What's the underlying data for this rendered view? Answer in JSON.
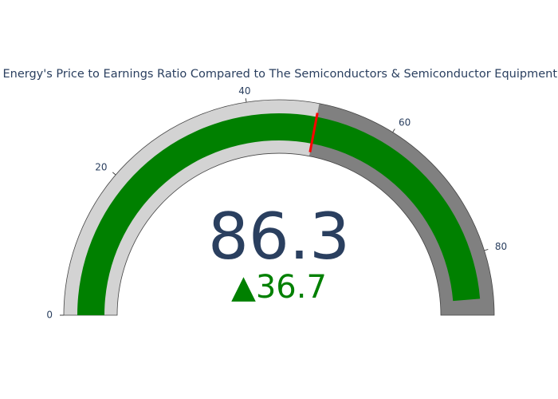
{
  "chart_data": {
    "type": "gauge",
    "title": "Enphase Energy's Price to Earnings Ratio Compared to The Semiconductors & Semiconductor Equipment Industry",
    "value": 86.3,
    "delta": {
      "value": 36.7,
      "label": "▲36.7",
      "color": "#008000"
    },
    "bar_color": "#008000",
    "steps": [
      {
        "range": [
          0,
          49.6
        ],
        "color": "#d3d3d3"
      },
      {
        "range": [
          49.6,
          88.6
        ],
        "color": "#808080"
      }
    ],
    "threshold": {
      "value": 49.6,
      "color": "#ff0000"
    },
    "xlim": [
      0,
      88.6
    ],
    "xticks": [
      0,
      20,
      40,
      60,
      80
    ]
  }
}
